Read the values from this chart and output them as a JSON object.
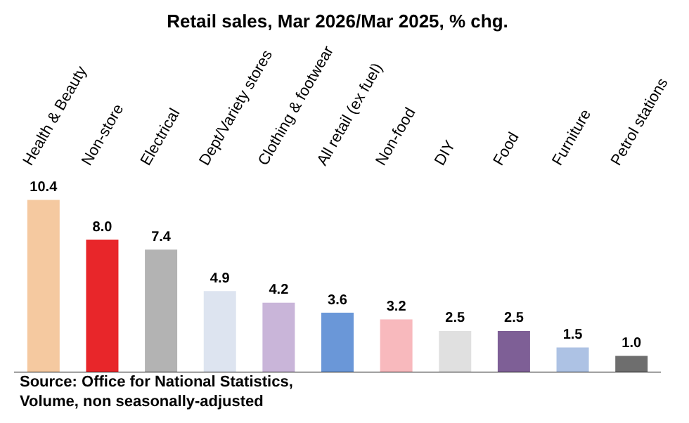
{
  "chart_data": {
    "type": "bar",
    "title": "Retail sales, Mar 2026/Mar 2025, % chg.",
    "categories": [
      "Health & Beauty",
      "Non-store",
      "Electrical",
      "Dept/Variety stores",
      "Clothing & footwear",
      "All retail (ex fuel)",
      "Non-food",
      "DIY",
      "Food",
      "Furniture",
      "Petrol stations"
    ],
    "values": [
      10.4,
      8.0,
      7.4,
      4.9,
      4.2,
      3.6,
      3.2,
      2.5,
      2.5,
      1.5,
      1.0
    ],
    "value_labels": [
      "10.4",
      "8.0",
      "7.4",
      "4.9",
      "4.2",
      "3.6",
      "3.2",
      "2.5",
      "2.5",
      "1.5",
      "1.0"
    ],
    "colors": [
      "#f5c9a0",
      "#e8262a",
      "#b3b3b3",
      "#dde4f0",
      "#c9b5d9",
      "#6a97d8",
      "#f8b9bd",
      "#e0e0e0",
      "#7e5f96",
      "#adc2e4",
      "#6e6e6e"
    ],
    "grid": false,
    "legend": false,
    "annotations": [
      "Source: Office for National Statistics,",
      "Volume, non seasonally-adjusted"
    ]
  }
}
